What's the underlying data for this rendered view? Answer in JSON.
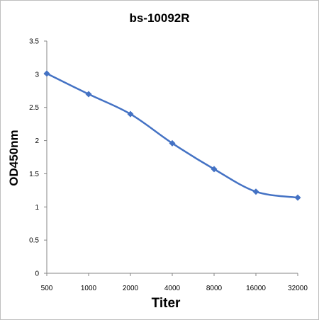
{
  "chart_data": {
    "type": "line",
    "title": "bs-10092R",
    "xlabel": "Titer",
    "ylabel": "OD450nm",
    "categories": [
      "500",
      "1000",
      "2000",
      "4000",
      "8000",
      "16000",
      "32000"
    ],
    "series": [
      {
        "values": [
          3.01,
          2.7,
          2.4,
          1.96,
          1.57,
          1.23,
          1.14
        ]
      }
    ],
    "ylim": [
      0,
      3.5
    ],
    "yticks": [
      "0",
      "0.5",
      "1",
      "1.5",
      "2",
      "2.5",
      "3",
      "3.5"
    ],
    "grid": false,
    "legend": "none",
    "colors": {
      "series": "#4472c4",
      "axis": "#868686"
    }
  }
}
